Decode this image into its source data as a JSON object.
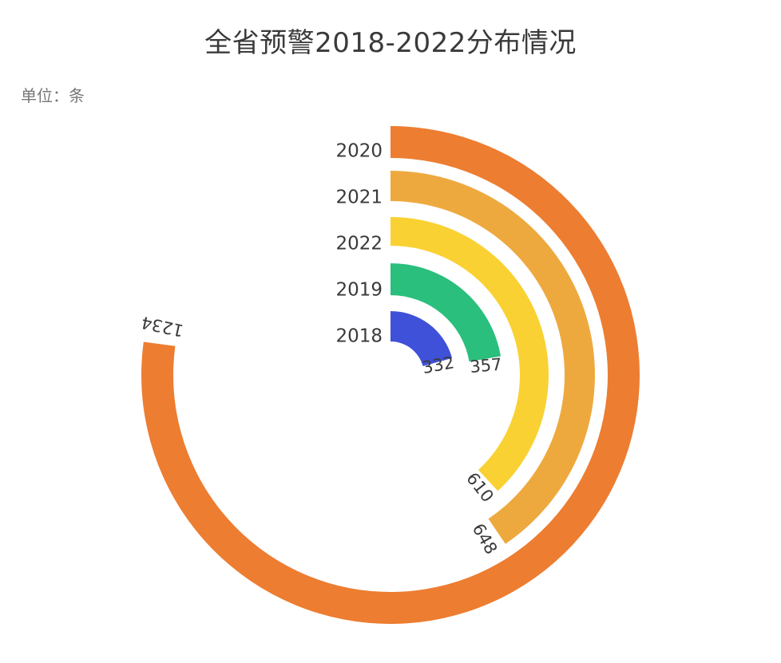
{
  "title": "全省预警2018-2022分布情况",
  "unit": "单位：条",
  "chart_data": {
    "type": "radial-bar",
    "title": "全省预警2018-2022分布情况",
    "unit": "单位：条",
    "categories": [
      "2020",
      "2021",
      "2022",
      "2019",
      "2018"
    ],
    "values": [
      1234,
      648,
      610,
      357,
      332
    ],
    "colors": [
      "#ED7D31",
      "#EEA93E",
      "#F9D132",
      "#2BBF7D",
      "#3F51D8"
    ],
    "max": 1600
  }
}
